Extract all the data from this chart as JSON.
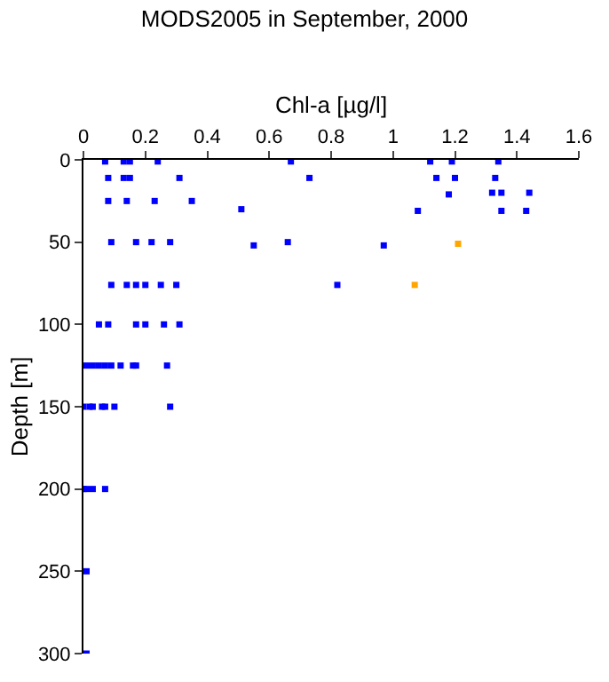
{
  "chart_data": {
    "type": "scatter",
    "title": "MODS2005 in September, 2000",
    "xlabel": "Chl-a [µg/l]",
    "ylabel": "Depth [m]",
    "xlim": [
      0,
      1.6
    ],
    "xticks": [
      0,
      0.2,
      0.4,
      0.6,
      0.8,
      1,
      1.2,
      1.4,
      1.6
    ],
    "ylim": [
      300,
      0
    ],
    "yticks": [
      0,
      50,
      100,
      150,
      200,
      250,
      300
    ],
    "marker": "square",
    "series": [
      {
        "color": "#0000ff",
        "x": [
          0.07,
          0.13,
          0.15,
          0.24,
          0.67,
          1.12,
          1.19,
          1.34,
          0.08,
          0.13,
          0.15,
          0.31,
          0.73,
          1.14,
          1.2,
          1.33,
          0.08,
          0.14,
          0.23,
          0.35,
          0.51,
          1.32,
          1.35,
          1.44,
          1.18,
          1.08,
          1.35,
          1.43,
          0.09,
          0.17,
          0.22,
          0.28,
          0.55,
          0.66,
          0.97,
          0.09,
          0.14,
          0.17,
          0.2,
          0.25,
          0.3,
          0.82,
          0.05,
          0.08,
          0.17,
          0.2,
          0.26,
          0.31,
          0.01,
          0.03,
          0.05,
          0.07,
          0.09,
          0.12,
          0.16,
          0.17,
          0.27,
          0,
          0.02,
          0.03,
          0.06,
          0.07,
          0.1,
          0.28,
          0,
          0.01,
          0.03,
          0.07,
          0.01,
          0.01
        ],
        "values": [
          1,
          1,
          1,
          1,
          1,
          1,
          1,
          1,
          11,
          11,
          11,
          11,
          11,
          11,
          11,
          11,
          25,
          25,
          25,
          25,
          30,
          20,
          20,
          20,
          21,
          31,
          31,
          31,
          50,
          50,
          50,
          50,
          52,
          50,
          52,
          76,
          76,
          76,
          76,
          76,
          76,
          76,
          100,
          100,
          100,
          100,
          100,
          100,
          125,
          125,
          125,
          125,
          125,
          125,
          125,
          125,
          125,
          150,
          150,
          150,
          150,
          150,
          150,
          150,
          200,
          200,
          200,
          200,
          250,
          300
        ]
      },
      {
        "color": "#ffa500",
        "x": [
          1.21,
          1.07
        ],
        "values": [
          51,
          76
        ]
      }
    ]
  }
}
